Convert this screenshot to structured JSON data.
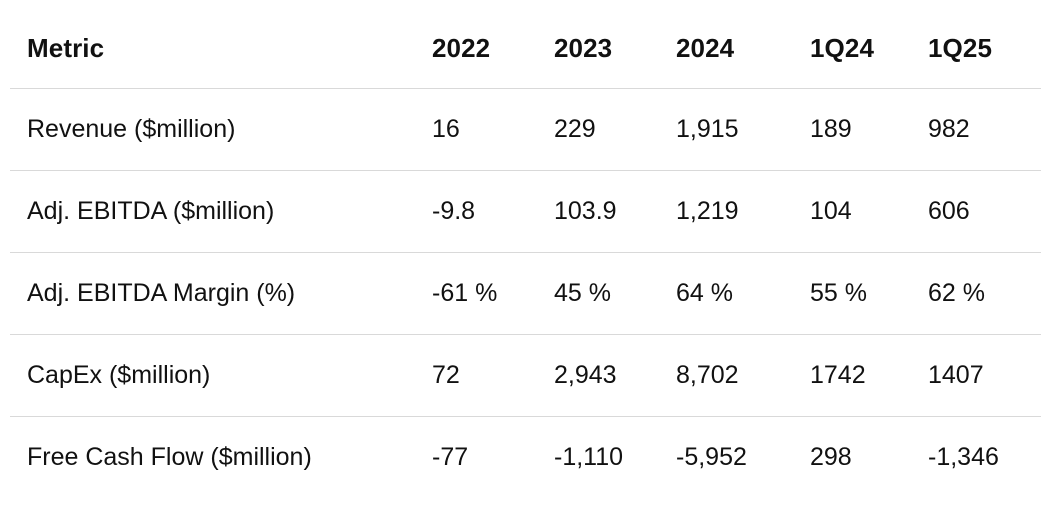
{
  "table": {
    "headers": [
      "Metric",
      "2022",
      "2023",
      "2024",
      "1Q24",
      "1Q25"
    ],
    "rows": [
      [
        "Revenue ($million)",
        "16",
        "229",
        "1,915",
        "189",
        "982"
      ],
      [
        "Adj. EBITDA ($million)",
        "-9.8",
        "103.9",
        "1,219",
        "104",
        "606"
      ],
      [
        "Adj. EBITDA Margin (%)",
        "-61 %",
        "45 %",
        "64 %",
        "55 %",
        "62 %"
      ],
      [
        "CapEx ($million)",
        "72",
        "2,943",
        "8,702",
        "1742",
        "1407"
      ],
      [
        "Free Cash Flow ($million)",
        "-77",
        "-1,110",
        "-5,952",
        "298",
        "-1,346"
      ]
    ]
  }
}
